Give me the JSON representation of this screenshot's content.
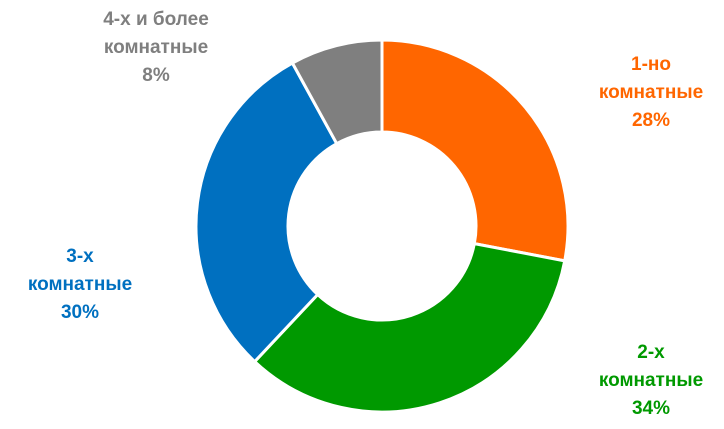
{
  "chart_data": {
    "type": "pie",
    "variant": "donut",
    "title": "",
    "slices": [
      {
        "name": "1-но комнатные",
        "label_lines": [
          "1-но",
          "комнатные"
        ],
        "value": 28,
        "value_label": "28%",
        "color": "#FF6600"
      },
      {
        "name": "2-х комнатные",
        "label_lines": [
          "2-х",
          "комнатные"
        ],
        "value": 34,
        "value_label": "34%",
        "color": "#009900"
      },
      {
        "name": "3-х комнатные",
        "label_lines": [
          "3-х",
          "комнатные"
        ],
        "value": 30,
        "value_label": "30%",
        "color": "#0070C0"
      },
      {
        "name": "4-х и более комнатные",
        "label_lines": [
          "4-х и более",
          "комнатные"
        ],
        "value": 8,
        "value_label": "8%",
        "color": "#7F7F7F"
      }
    ],
    "legend": "none"
  }
}
